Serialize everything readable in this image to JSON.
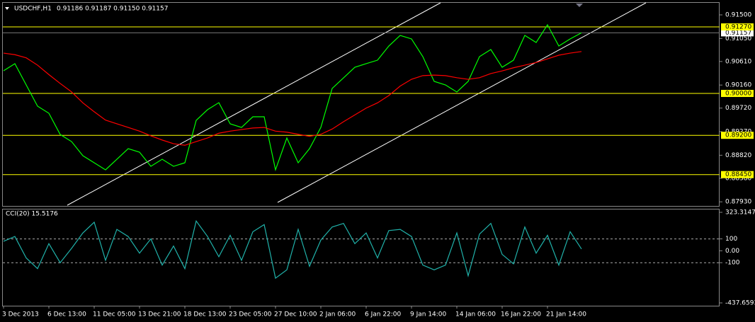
{
  "chart_data": [
    {
      "type": "line",
      "title": "USDCHF,H1",
      "subtitle": "0.91186 0.91187 0.91150 0.91157",
      "categories": [
        "3 Dec 2013",
        null,
        null,
        null,
        "6 Dec 13:00",
        null,
        null,
        null,
        "11 Dec 05:00",
        null,
        null,
        null,
        "13 Dec 21:00",
        null,
        null,
        null,
        "18 Dec 13:00",
        null,
        null,
        null,
        "23 Dec 05:00",
        null,
        null,
        null,
        "27 Dec 10:00",
        null,
        null,
        null,
        "2 Jan 06:00",
        null,
        null,
        null,
        "6 Jan 22:00",
        null,
        null,
        null,
        "9 Jan 14:00",
        null,
        null,
        null,
        "14 Jan 06:00",
        null,
        null,
        null,
        "16 Jan 22:00",
        null,
        null,
        null,
        "21 Jan 14:00",
        null,
        null,
        null
      ],
      "series": [
        {
          "color": "#00ff00",
          "values": [
            0.90432,
            0.90568,
            0.90162,
            0.89757,
            0.89622,
            0.89216,
            0.89081,
            0.88811,
            0.88676,
            0.88541,
            0.88743,
            0.88946,
            0.88878,
            0.88608,
            0.88743,
            0.88608,
            0.88676,
            0.89486,
            0.89689,
            0.89824,
            0.89419,
            0.89351,
            0.89554,
            0.89554,
            0.88541,
            0.89149,
            0.88676,
            0.88946,
            0.89351,
            0.90095,
            0.90297,
            0.905,
            0.90568,
            0.90635,
            0.90905,
            0.91108,
            0.91041,
            0.90703,
            0.9023,
            0.90162,
            0.90027,
            0.9023,
            0.90703,
            0.90838,
            0.905,
            0.90635,
            0.91108,
            0.90973,
            0.91311,
            0.90905,
            0.91041,
            0.91157
          ]
        },
        {
          "color": "#ff0000",
          "values": [
            0.9077,
            0.9074,
            0.9068,
            0.9054,
            0.9036,
            0.9019,
            0.9003,
            0.8982,
            0.8965,
            0.8949,
            0.8942,
            0.8935,
            0.8928,
            0.8919,
            0.8911,
            0.8904,
            0.8901,
            0.8908,
            0.8915,
            0.8924,
            0.8928,
            0.8931,
            0.8934,
            0.8935,
            0.8928,
            0.8926,
            0.8922,
            0.8918,
            0.8922,
            0.8932,
            0.8946,
            0.8959,
            0.8972,
            0.8982,
            0.8996,
            0.9014,
            0.9027,
            0.9034,
            0.9035,
            0.9034,
            0.903,
            0.9027,
            0.903,
            0.9038,
            0.9043,
            0.9049,
            0.9054,
            0.9059,
            0.9066,
            0.9073,
            0.9077,
            0.908
          ]
        }
      ],
      "ylim": [
        0.87865,
        0.9173
      ],
      "yticks": [
        {
          "value": 0.915,
          "label": "0.91500"
        },
        {
          "value": 0.9105,
          "label": "0.91050"
        },
        {
          "value": 0.9061,
          "label": "0.90610"
        },
        {
          "value": 0.9016,
          "label": "0.90160"
        },
        {
          "value": 0.8972,
          "label": "0.89720"
        },
        {
          "value": 0.8927,
          "label": "0.89270"
        },
        {
          "value": 0.8882,
          "label": "0.88820"
        },
        {
          "value": 0.8838,
          "label": "0.88380"
        },
        {
          "value": 0.8793,
          "label": "0.87930"
        }
      ],
      "levels": [
        {
          "value": 0.9127,
          "label": "0.91270",
          "color": "#ffff00"
        },
        {
          "value": 0.9,
          "label": "0.90000",
          "color": "#ffff00"
        },
        {
          "value": 0.892,
          "label": "0.89200",
          "color": "#ffff00"
        },
        {
          "value": 0.8845,
          "label": "0.88450",
          "color": "#ffff00"
        }
      ],
      "price_line": {
        "value": 0.91157,
        "label": "0.91157",
        "color": "#ffffff"
      }
    },
    {
      "type": "line",
      "title": "CCI(20) 15.5176",
      "color": "#20b2aa",
      "values": [
        80,
        120,
        -60,
        -150,
        60,
        -100,
        20,
        150,
        240,
        -80,
        180,
        120,
        -20,
        100,
        -120,
        40,
        -150,
        250,
        120,
        -50,
        130,
        -80,
        160,
        220,
        -230,
        -160,
        180,
        -130,
        90,
        200,
        230,
        60,
        150,
        -60,
        170,
        180,
        120,
        -120,
        -160,
        -120,
        150,
        -210,
        140,
        230,
        -30,
        -110,
        200,
        -20,
        130,
        -120,
        160,
        15.5176
      ],
      "ylim": [
        -437.6593,
        323.3147
      ],
      "yticks": [
        323.3147,
        100,
        {
          "value": 0,
          "label": "0.00"
        },
        -100,
        -437.6593
      ],
      "levels": [
        100,
        -100
      ]
    }
  ]
}
